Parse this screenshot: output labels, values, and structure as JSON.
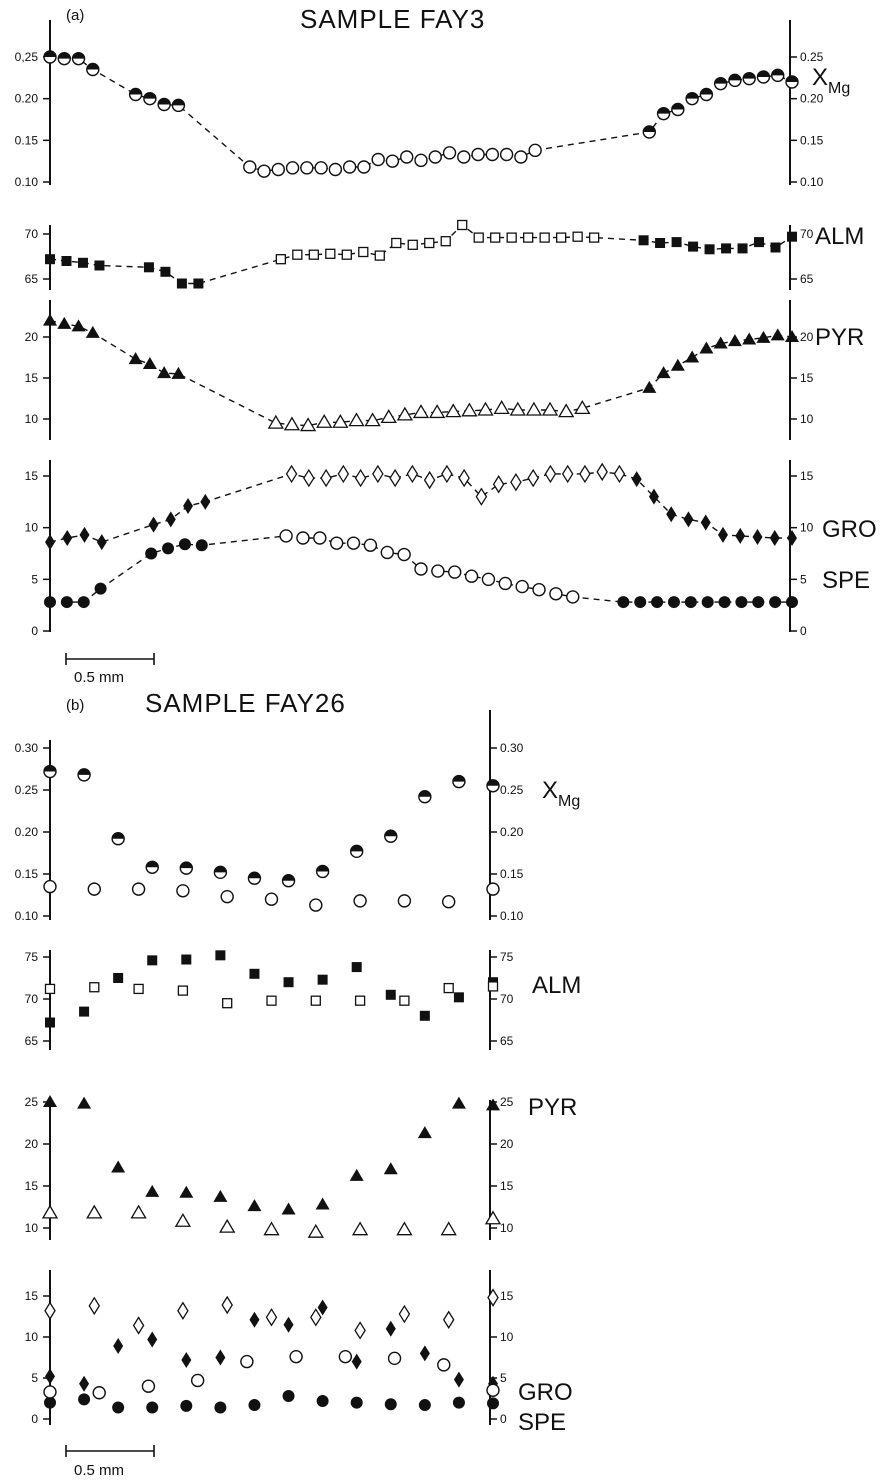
{
  "chart_data": [
    {
      "type": "scatter",
      "panel_label": "(a)",
      "title": "SAMPLE FAY3",
      "scale_bar_label": "0.5 mm",
      "subplots": [
        {
          "key": "xmg",
          "label": "X",
          "label_sub": "Mg",
          "left_ticks": [
            "0,25",
            "0.20",
            "0.15",
            "0.10"
          ],
          "right_ticks": [
            "0.25",
            "0.20",
            "0.15",
            "0.10"
          ],
          "tick_values": [
            0.25,
            0.2,
            0.15,
            0.1
          ],
          "series": [
            {
              "marker": "half-circle",
              "values": [
                0.25,
                0.248,
                0.248,
                0.235,
                null,
                null,
                0.205,
                0.2,
                0.193,
                0.192,
                null,
                null,
                null,
                null,
                null,
                null,
                null,
                null,
                null,
                null,
                null,
                null,
                null,
                null,
                null,
                null,
                null,
                null,
                null,
                null,
                null,
                null,
                null,
                null,
                null,
                null,
                null,
                null,
                null,
                null,
                null,
                null,
                0.16,
                0.182,
                0.187,
                0.2,
                0.205,
                0.218,
                0.222,
                0.224,
                0.226,
                0.228,
                0.22
              ]
            },
            {
              "marker": "open-circle",
              "values": [
                null,
                null,
                null,
                null,
                null,
                null,
                null,
                null,
                null,
                null,
                null,
                null,
                null,
                null,
                0.118,
                0.113,
                0.115,
                0.117,
                0.117,
                0.117,
                0.115,
                0.118,
                0.118,
                0.127,
                0.125,
                0.13,
                0.126,
                0.13,
                0.135,
                0.13,
                0.133,
                0.133,
                0.133,
                0.13,
                0.138,
                null,
                null,
                null,
                null,
                null,
                null,
                null,
                null,
                null,
                null,
                null,
                null,
                null,
                null,
                null,
                null,
                null,
                null
              ]
            }
          ]
        },
        {
          "key": "alm",
          "label": "ALM",
          "left_ticks": [
            "70",
            "65"
          ],
          "right_ticks": [
            "70",
            "65"
          ],
          "tick_values": [
            70,
            65
          ],
          "series": [
            {
              "marker": "filled-square",
              "values": [
                67.2,
                67.0,
                66.8,
                66.5,
                null,
                null,
                66.3,
                65.8,
                64.5,
                64.5,
                null,
                null,
                null,
                null,
                null,
                null,
                null,
                null,
                null,
                null,
                null,
                null,
                null,
                null,
                null,
                null,
                null,
                null,
                null,
                null,
                null,
                null,
                null,
                null,
                null,
                null,
                69.3,
                69.0,
                69.1,
                68.6,
                68.3,
                68.4,
                68.4,
                69.1,
                68.5,
                69.7
              ]
            },
            {
              "marker": "open-square",
              "values": [
                null,
                null,
                null,
                null,
                null,
                null,
                null,
                null,
                null,
                null,
                null,
                null,
                null,
                null,
                67.2,
                67.7,
                67.7,
                67.8,
                67.7,
                68.0,
                67.6,
                69.0,
                68.8,
                69.0,
                69.2,
                71.0,
                69.6,
                69.6,
                69.6,
                69.6,
                69.6,
                69.6,
                69.7,
                69.6,
                null,
                null,
                null,
                null,
                null,
                null,
                null,
                null,
                null,
                null,
                null,
                null
              ]
            }
          ]
        },
        {
          "key": "pyr",
          "label": "PYR",
          "left_ticks": [
            "20",
            "15",
            "10"
          ],
          "right_ticks": [
            "20",
            "15",
            "10"
          ],
          "tick_values": [
            20,
            15,
            10
          ],
          "series": [
            {
              "marker": "filled-triangle",
              "values": [
                22.0,
                21.6,
                21.3,
                20.5,
                null,
                null,
                17.3,
                16.7,
                15.6,
                15.5,
                null,
                null,
                null,
                null,
                null,
                null,
                null,
                null,
                null,
                null,
                null,
                null,
                null,
                null,
                null,
                null,
                null,
                null,
                null,
                null,
                null,
                null,
                null,
                null,
                null,
                null,
                null,
                null,
                null,
                null,
                null,
                null,
                13.8,
                15.6,
                16.5,
                17.5,
                18.6,
                19.2,
                19.5,
                19.7,
                19.9,
                20.2,
                20.0
              ]
            },
            {
              "marker": "open-triangle",
              "values": [
                null,
                null,
                null,
                null,
                null,
                null,
                null,
                null,
                null,
                null,
                null,
                null,
                null,
                null,
                9.5,
                9.3,
                9.2,
                9.6,
                9.6,
                9.8,
                9.8,
                10.2,
                10.5,
                10.8,
                10.8,
                10.9,
                11.0,
                11.1,
                11.3,
                11.1,
                11.1,
                11.1,
                10.9,
                11.3,
                null,
                null,
                null,
                null,
                null,
                null,
                null,
                null,
                null,
                null,
                null,
                null,
                null
              ]
            }
          ]
        },
        {
          "key": "gro_spe",
          "labels": [
            "GRO",
            "SPE"
          ],
          "left_ticks": [
            "15",
            "10",
            "5",
            "0"
          ],
          "right_ticks": [
            "15",
            "10",
            "5",
            "0"
          ],
          "tick_values": [
            15,
            10,
            5,
            0
          ],
          "gro_series": [
            {
              "marker": "filled-diamond",
              "values": [
                8.6,
                9.0,
                9.3,
                8.6,
                null,
                null,
                10.3,
                10.8,
                12.1,
                12.5,
                null,
                null,
                null,
                null,
                null,
                null,
                null,
                null,
                null,
                null,
                null,
                null,
                null,
                null,
                null,
                null,
                null,
                null,
                null,
                null,
                null,
                null,
                null,
                null,
                14.7,
                13.0,
                11.3,
                10.8,
                10.5,
                9.3,
                9.2,
                9.1,
                9.0,
                9.0
              ]
            },
            {
              "marker": "open-diamond",
              "values": [
                null,
                null,
                null,
                null,
                null,
                null,
                null,
                null,
                null,
                null,
                null,
                null,
                null,
                null,
                15.2,
                14.8,
                14.8,
                15.2,
                14.8,
                15.2,
                14.8,
                15.2,
                14.6,
                15.2,
                14.8,
                13.0,
                14.2,
                14.4,
                14.8,
                15.2,
                15.2,
                15.2,
                15.4,
                15.2,
                null,
                null,
                null,
                null,
                null,
                null,
                null,
                null,
                null,
                null
              ]
            }
          ],
          "spe_series": [
            {
              "marker": "filled-circle",
              "values": [
                2.8,
                2.8,
                2.8,
                4.1,
                null,
                null,
                7.5,
                8.0,
                8.4,
                8.3,
                null,
                null,
                null,
                null,
                null,
                null,
                null,
                null,
                null,
                null,
                null,
                null,
                null,
                null,
                null,
                null,
                null,
                null,
                null,
                null,
                null,
                null,
                null,
                null,
                2.8,
                2.8,
                2.8,
                2.8,
                2.8,
                2.8,
                2.8,
                2.8,
                2.8,
                2.8,
                2.8
              ]
            },
            {
              "marker": "open-circle",
              "values": [
                null,
                null,
                null,
                null,
                null,
                null,
                null,
                null,
                null,
                null,
                null,
                null,
                null,
                null,
                9.2,
                9.0,
                9.0,
                8.5,
                8.5,
                8.3,
                7.6,
                7.4,
                6.0,
                5.8,
                5.7,
                5.3,
                5.0,
                4.6,
                4.3,
                4.0,
                3.6,
                3.3,
                null,
                null,
                null,
                null,
                null,
                null,
                null,
                null,
                null,
                null,
                null,
                null,
                null
              ]
            }
          ]
        }
      ]
    },
    {
      "type": "scatter",
      "panel_label": "(b)",
      "title": "SAMPLE FAY26",
      "scale_bar_label": "0.5 mm",
      "subplots": [
        {
          "key": "xmg",
          "label": "X",
          "label_sub": "Mg",
          "left_ticks": [
            "0.30",
            "0.25",
            "0.20",
            "0.15",
            "0.10"
          ],
          "right_ticks": [
            "0.30",
            "0.25",
            "0.20",
            "0.15",
            "0.10"
          ],
          "tick_values": [
            0.3,
            0.25,
            0.2,
            0.15,
            0.1
          ],
          "series": [
            {
              "marker": "half-circle",
              "values": [
                0.272,
                0.268,
                0.192,
                0.158,
                0.157,
                0.152,
                0.145,
                0.142,
                0.153,
                0.177,
                0.195,
                0.242,
                0.26,
                0.255
              ]
            },
            {
              "marker": "open-circle",
              "values": [
                0.135,
                0.132,
                0.132,
                0.13,
                0.123,
                0.12,
                0.113,
                0.118,
                0.118,
                0.117,
                0.132
              ]
            }
          ]
        },
        {
          "key": "alm",
          "label": "ALM",
          "left_ticks": [
            "75",
            "70",
            "65"
          ],
          "right_ticks": [
            "75",
            "70",
            "65"
          ],
          "tick_values": [
            75,
            70,
            65
          ],
          "series": [
            {
              "marker": "filled-square",
              "values": [
                67.2,
                68.5,
                72.5,
                74.6,
                74.7,
                75.2,
                73.0,
                72.0,
                72.3,
                73.8,
                70.5,
                68.0,
                70.2,
                72.0
              ]
            },
            {
              "marker": "open-square",
              "values": [
                71.2,
                71.4,
                71.2,
                71.0,
                69.5,
                69.8,
                69.8,
                69.8,
                69.8,
                71.3,
                71.5
              ]
            }
          ]
        },
        {
          "key": "pyr",
          "label": "PYR",
          "left_ticks": [
            "25",
            "20",
            "15",
            "10"
          ],
          "right_ticks": [
            "25",
            "20",
            "15",
            "10"
          ],
          "tick_values": [
            25,
            20,
            15,
            10
          ],
          "series": [
            {
              "marker": "filled-triangle",
              "values": [
                25.0,
                24.8,
                17.2,
                14.3,
                14.2,
                13.7,
                12.6,
                12.2,
                12.8,
                16.2,
                17.0,
                21.3,
                24.8,
                24.6
              ]
            },
            {
              "marker": "open-triangle",
              "values": [
                11.8,
                11.8,
                11.8,
                10.8,
                10.1,
                9.8,
                9.5,
                9.8,
                9.8,
                9.8,
                11.1
              ]
            }
          ]
        },
        {
          "key": "gro_spe",
          "labels": [
            "GRO",
            "SPE"
          ],
          "left_ticks": [
            "15",
            "10",
            "5",
            "0"
          ],
          "right_ticks": [
            "15",
            "10",
            "5",
            "0"
          ],
          "tick_values": [
            15,
            10,
            5,
            0
          ],
          "gro_series": [
            {
              "marker": "filled-diamond",
              "values": [
                5.2,
                4.3,
                8.9,
                9.7,
                7.2,
                7.5,
                12.1,
                11.5,
                13.6,
                7.0,
                11.0,
                8.0,
                4.8,
                4.3
              ]
            },
            {
              "marker": "open-diamond",
              "values": [
                13.2,
                13.8,
                11.4,
                13.2,
                13.9,
                12.4,
                12.4,
                10.8,
                12.8,
                12.1,
                14.8
              ]
            }
          ],
          "spe_series": [
            {
              "marker": "filled-circle",
              "values": [
                2.0,
                2.4,
                1.4,
                1.4,
                1.6,
                1.4,
                1.7,
                2.8,
                2.2,
                2.0,
                1.8,
                1.7,
                2.0,
                1.9
              ]
            },
            {
              "marker": "open-circle",
              "values": [
                3.3,
                3.2,
                4.0,
                4.7,
                7.0,
                7.6,
                7.6,
                7.4,
                6.6,
                3.5
              ]
            }
          ]
        }
      ]
    }
  ]
}
